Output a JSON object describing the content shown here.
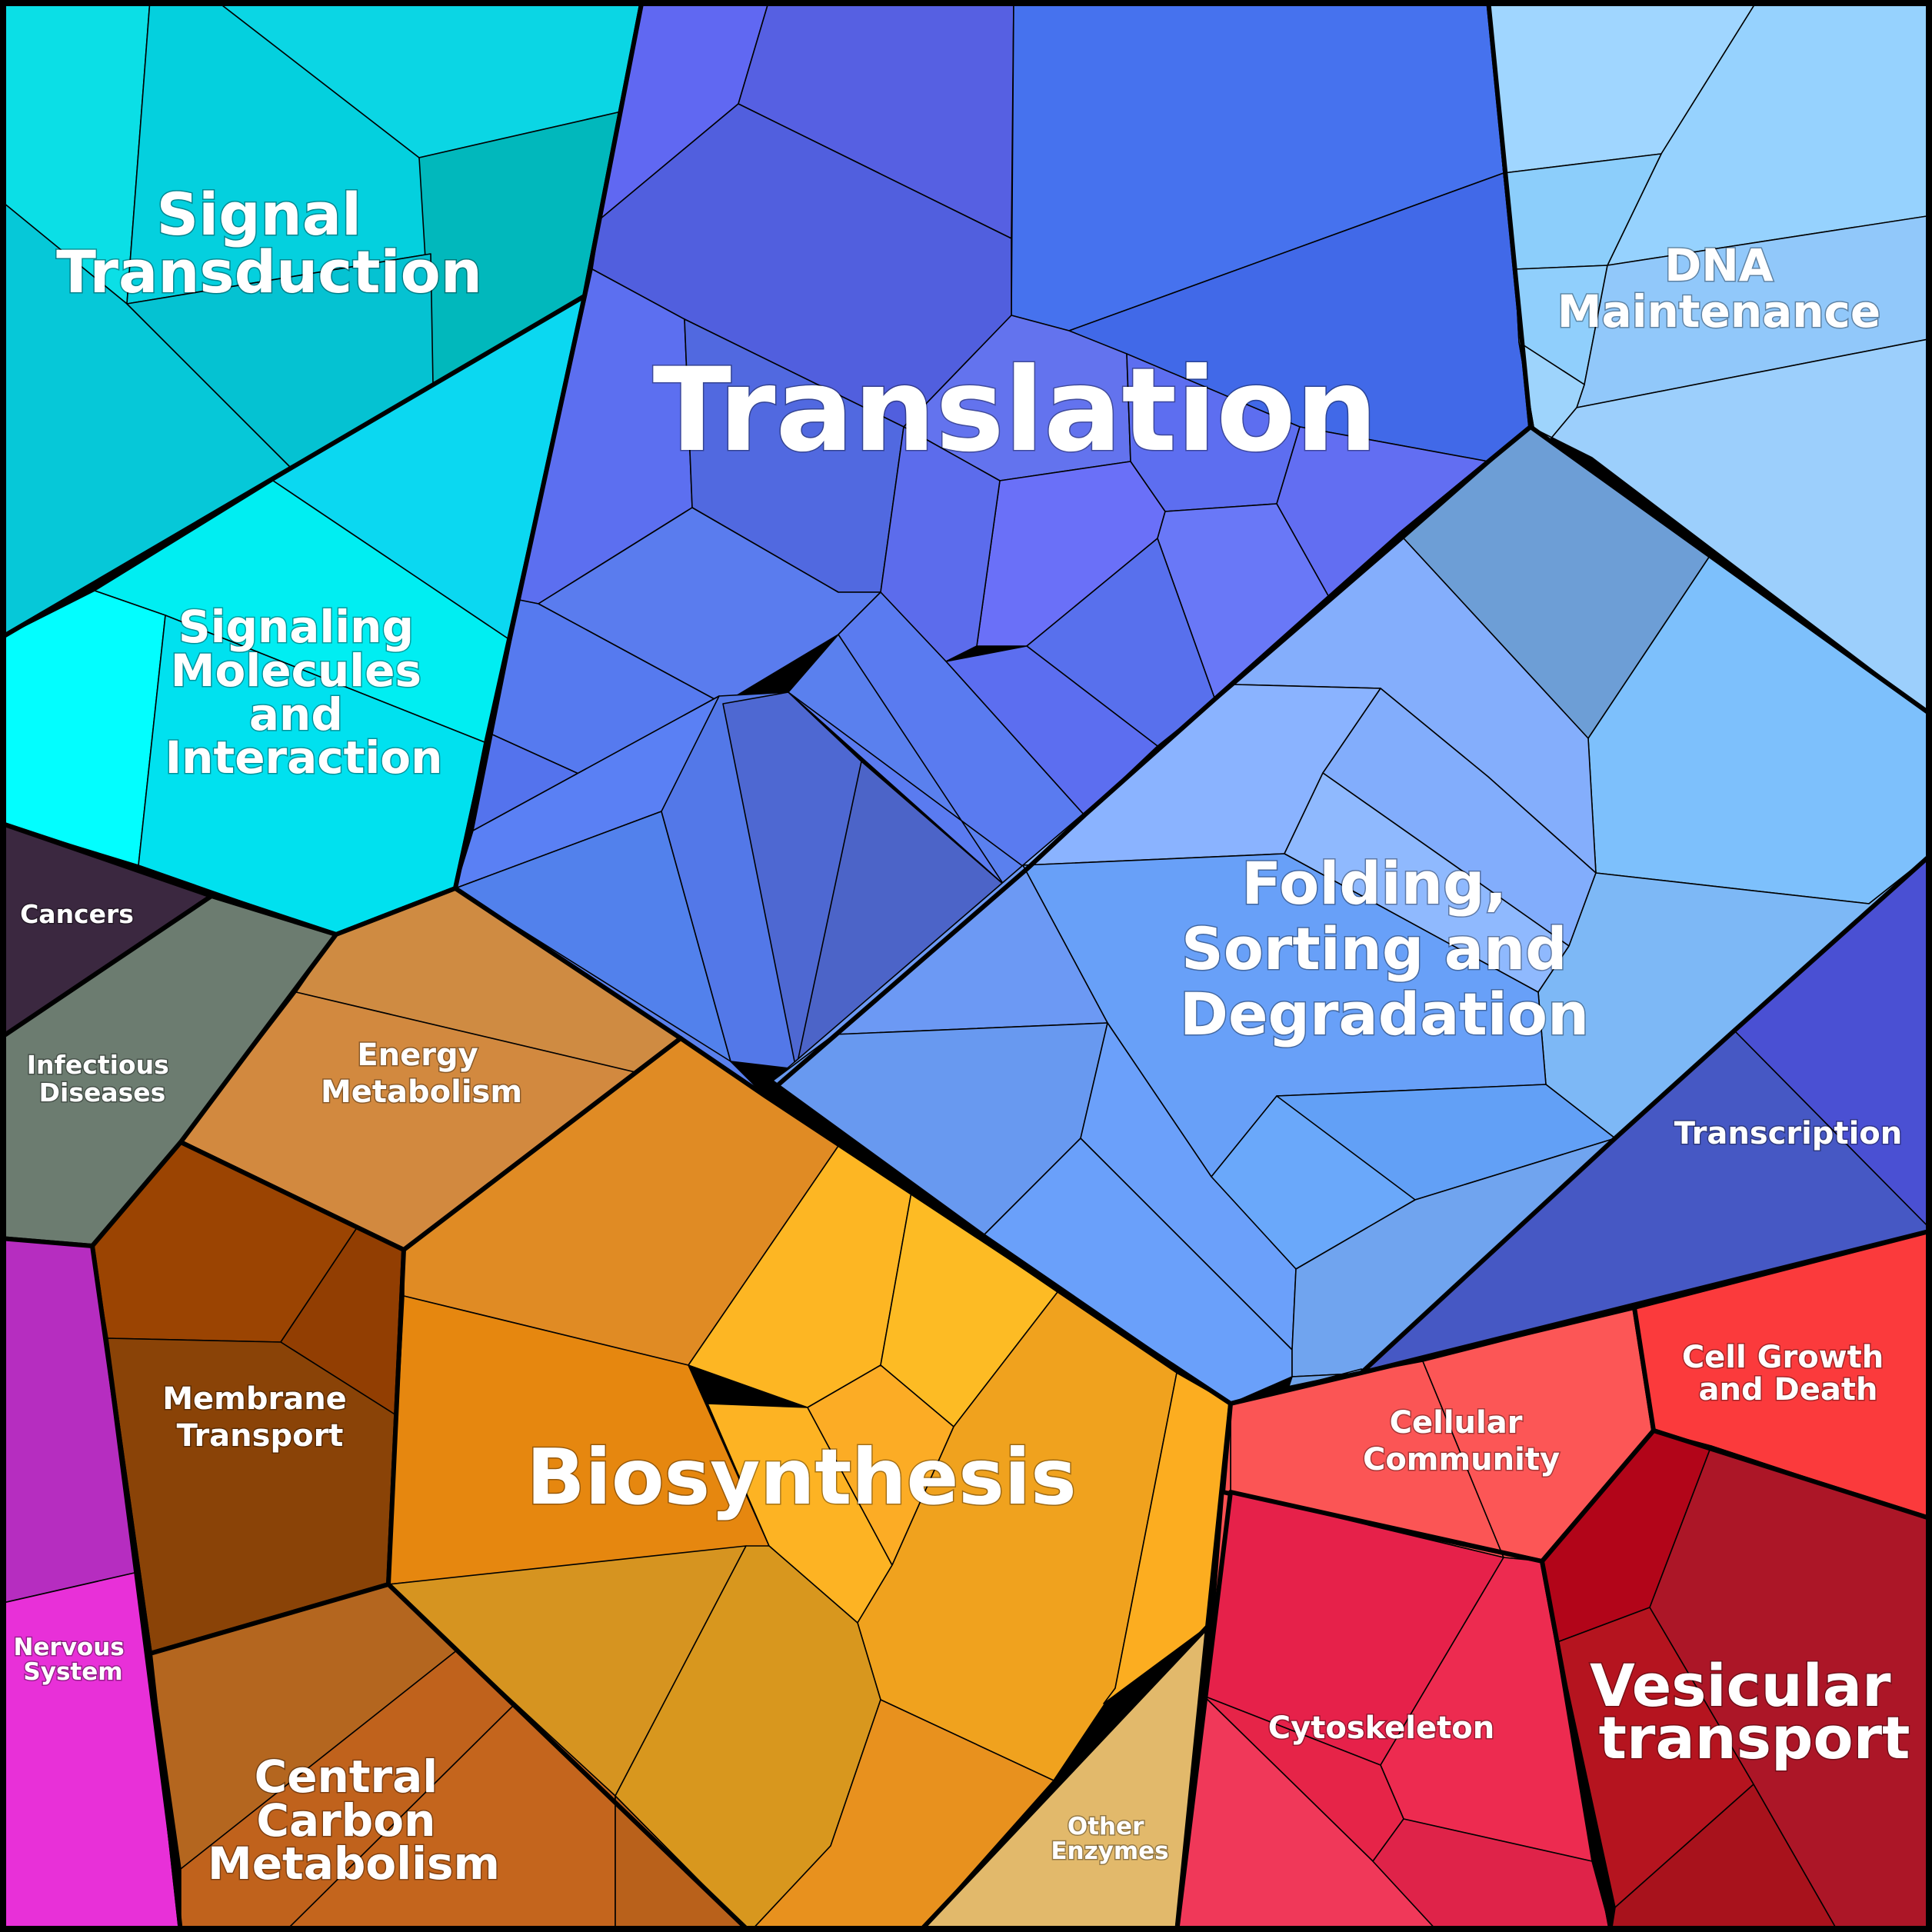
{
  "regions": {
    "signal_transduction": {
      "lines": [
        "Signal",
        "Transduction"
      ],
      "color": "#05cfdc"
    },
    "signaling_molecules": {
      "lines": [
        "Signaling",
        "Molecules",
        "and",
        "Interaction"
      ],
      "color": "#00e6f2"
    },
    "translation": {
      "lines": [
        "Translation"
      ],
      "color": "#5067e8"
    },
    "dna_maintenance": {
      "lines": [
        "DNA",
        "Maintenance"
      ],
      "color": "#9ad6fd"
    },
    "folding": {
      "lines": [
        "Folding,",
        "Sorting and",
        "Degradation"
      ],
      "color": "#7eaafb"
    },
    "transcription": {
      "lines": [
        "Transcription"
      ],
      "color": "#4654c6"
    },
    "cancers": {
      "lines": [
        "Cancers"
      ],
      "color": "#3b2840"
    },
    "infectious_diseases": {
      "lines": [
        "Infectious",
        "Diseases"
      ],
      "color": "#6c7c70"
    },
    "energy_metabolism": {
      "lines": [
        "Energy",
        "Metabolism"
      ],
      "color": "#cf8b42"
    },
    "membrane_transport": {
      "lines": [
        "Membrane",
        "Transport"
      ],
      "color": "#8a410b"
    },
    "biosynthesis": {
      "lines": [
        "Biosynthesis"
      ],
      "color": "#e6901e"
    },
    "nervous_system": {
      "lines": [
        "Nervous",
        "System"
      ],
      "color": "#e72fd5"
    },
    "central_carbon": {
      "lines": [
        "Central",
        "Carbon",
        "Metabolism"
      ],
      "color": "#c0621c"
    },
    "other_enzymes": {
      "lines": [
        "Other",
        "Enzymes"
      ],
      "color": "#e2b96b"
    },
    "cellular_community": {
      "lines": [
        "Cellular",
        "Community"
      ],
      "color": "#fb5555"
    },
    "cell_growth": {
      "lines": [
        "Cell Growth",
        "and Death"
      ],
      "color": "#fb3a3c"
    },
    "cytoskeleton": {
      "lines": [
        "Cytoskeleton"
      ],
      "color": "#e9244c"
    },
    "vesicular_transport": {
      "lines": [
        "Vesicular",
        "transport"
      ],
      "color": "#b0162a"
    }
  }
}
